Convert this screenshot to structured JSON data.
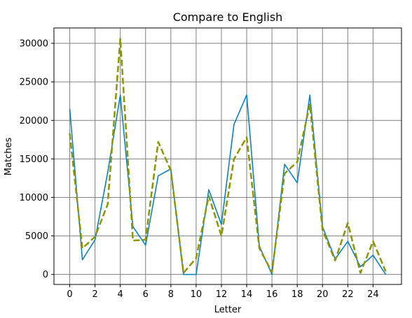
{
  "chart_data": {
    "type": "line",
    "title": "Compare to English",
    "xlabel": "Letter",
    "ylabel": "Matches",
    "x": [
      0,
      1,
      2,
      3,
      4,
      5,
      6,
      7,
      8,
      9,
      10,
      11,
      12,
      13,
      14,
      15,
      16,
      17,
      18,
      19,
      20,
      21,
      22,
      23,
      24,
      25
    ],
    "xticks": [
      0,
      2,
      4,
      6,
      8,
      10,
      12,
      14,
      16,
      18,
      20,
      22,
      24
    ],
    "yticks": [
      0,
      5000,
      10000,
      15000,
      20000,
      25000,
      30000
    ],
    "xlim": [
      -1.25,
      26.25
    ],
    "ylim": [
      -1300,
      32000
    ],
    "grid": true,
    "series": [
      {
        "color": "#0a83c0",
        "dash": "solid",
        "values": [
          21500,
          1900,
          4500,
          13200,
          23300,
          6200,
          3800,
          12800,
          13700,
          0,
          0,
          11000,
          6500,
          19500,
          23300,
          3700,
          0,
          14300,
          11900,
          23300,
          6200,
          2000,
          4300,
          1000,
          2500,
          0
        ]
      },
      {
        "color": "#8c9600",
        "dash": "dashed",
        "values": [
          18300,
          3400,
          4900,
          9100,
          30600,
          4400,
          4500,
          17200,
          13500,
          200,
          2100,
          10200,
          5000,
          15000,
          17800,
          3400,
          300,
          13100,
          14600,
          22100,
          5800,
          1800,
          6700,
          200,
          4300,
          400
        ]
      }
    ]
  }
}
